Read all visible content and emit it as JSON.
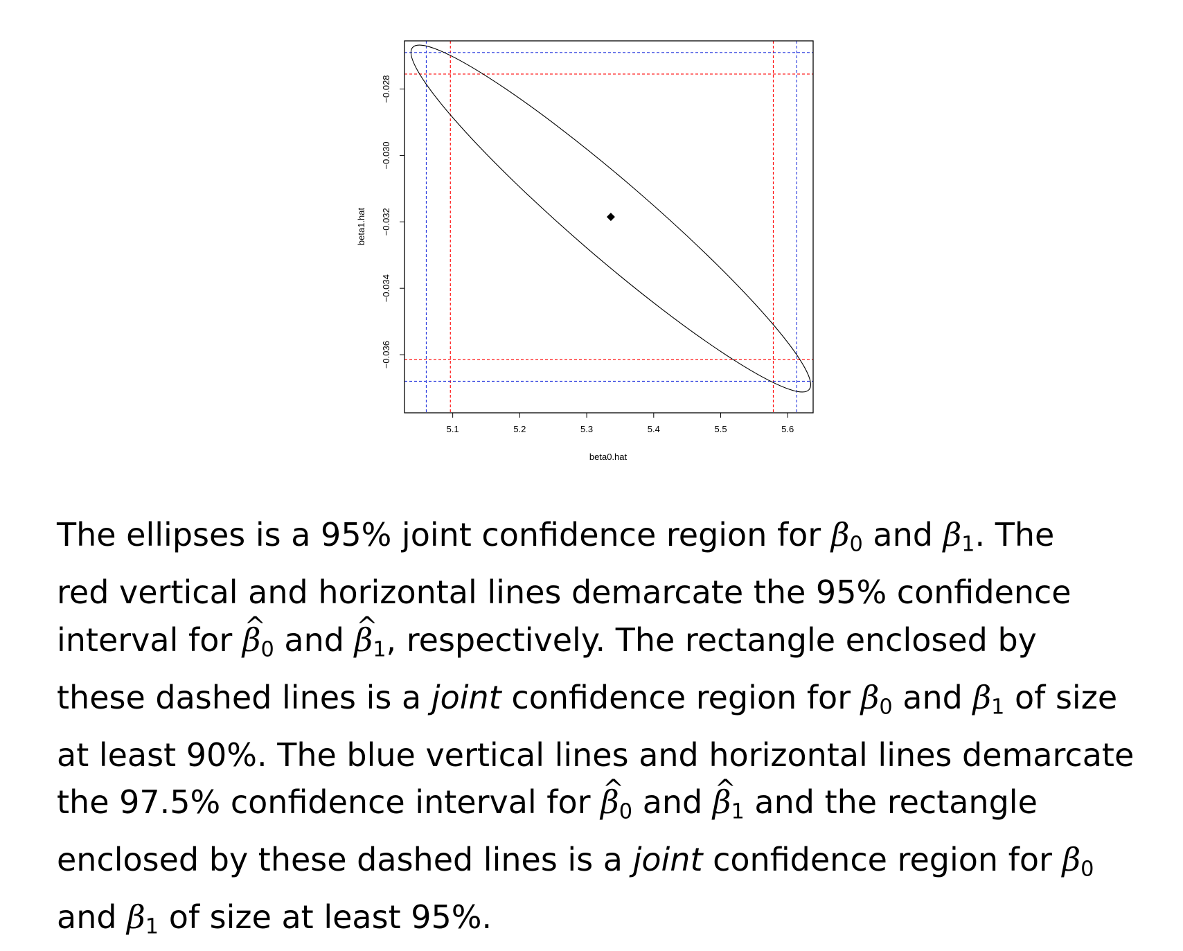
{
  "chart_data": {
    "type": "scatter",
    "title": "",
    "xlabel": "beta0.hat",
    "ylabel": "beta1.hat",
    "xlim": [
      5.028,
      5.638
    ],
    "ylim": [
      -0.03775,
      -0.02655
    ],
    "xticks": [
      "5.1",
      "5.2",
      "5.3",
      "5.4",
      "5.5",
      "5.6"
    ],
    "xtick_values": [
      5.1,
      5.2,
      5.3,
      5.4,
      5.5,
      5.6
    ],
    "yticks": [
      "−0.036",
      "−0.034",
      "−0.032",
      "−0.030",
      "−0.028"
    ],
    "ytick_values": [
      -0.036,
      -0.034,
      -0.032,
      -0.03,
      -0.028
    ],
    "point": {
      "x": 5.336,
      "y": -0.03185
    },
    "ellipse": {
      "center": [
        5.336,
        -0.03185
      ],
      "extremes": {
        "upper_left": [
          5.04,
          -0.02675
        ],
        "lower_right": [
          5.632,
          -0.03705
        ]
      },
      "color": "#000000"
    },
    "red_vertical": [
      5.0965,
      5.5785
    ],
    "red_horizontal": [
      -0.02755,
      -0.03615
    ],
    "blue_vertical": [
      5.0605,
      5.6135
    ],
    "blue_horizontal": [
      -0.0269,
      -0.0368
    ],
    "colors": {
      "red": "#ff0000",
      "blue": "#2233dd"
    },
    "grid": false
  },
  "caption": {
    "line1": {
      "a": "The ellipses is a 95% joint confidence region for ",
      "b": " and ",
      "c": ". The"
    },
    "line2": "red vertical and horizontal lines demarcate the 95% confidence",
    "line3": {
      "a": "interval for ",
      "b": " and ",
      "c": ", respectively. The rectangle enclosed by"
    },
    "line4": {
      "a": "these dashed lines is a ",
      "em": "joint",
      "b": " confidence region for ",
      "c": " and ",
      "d": " of size"
    },
    "line5": "at least 90%. The blue vertical lines and horizontal lines demarcate",
    "line6": {
      "a": "the 97.5% confidence interval for ",
      "b": " and ",
      "c": " and the rectangle"
    },
    "line7": {
      "a": "enclosed by these dashed lines is a ",
      "em": "joint",
      "b": " confidence region for "
    },
    "line8": {
      "a": "and ",
      "b": " of size at least 95%."
    },
    "beta": "β",
    "sub0": "0",
    "sub1": "1"
  }
}
